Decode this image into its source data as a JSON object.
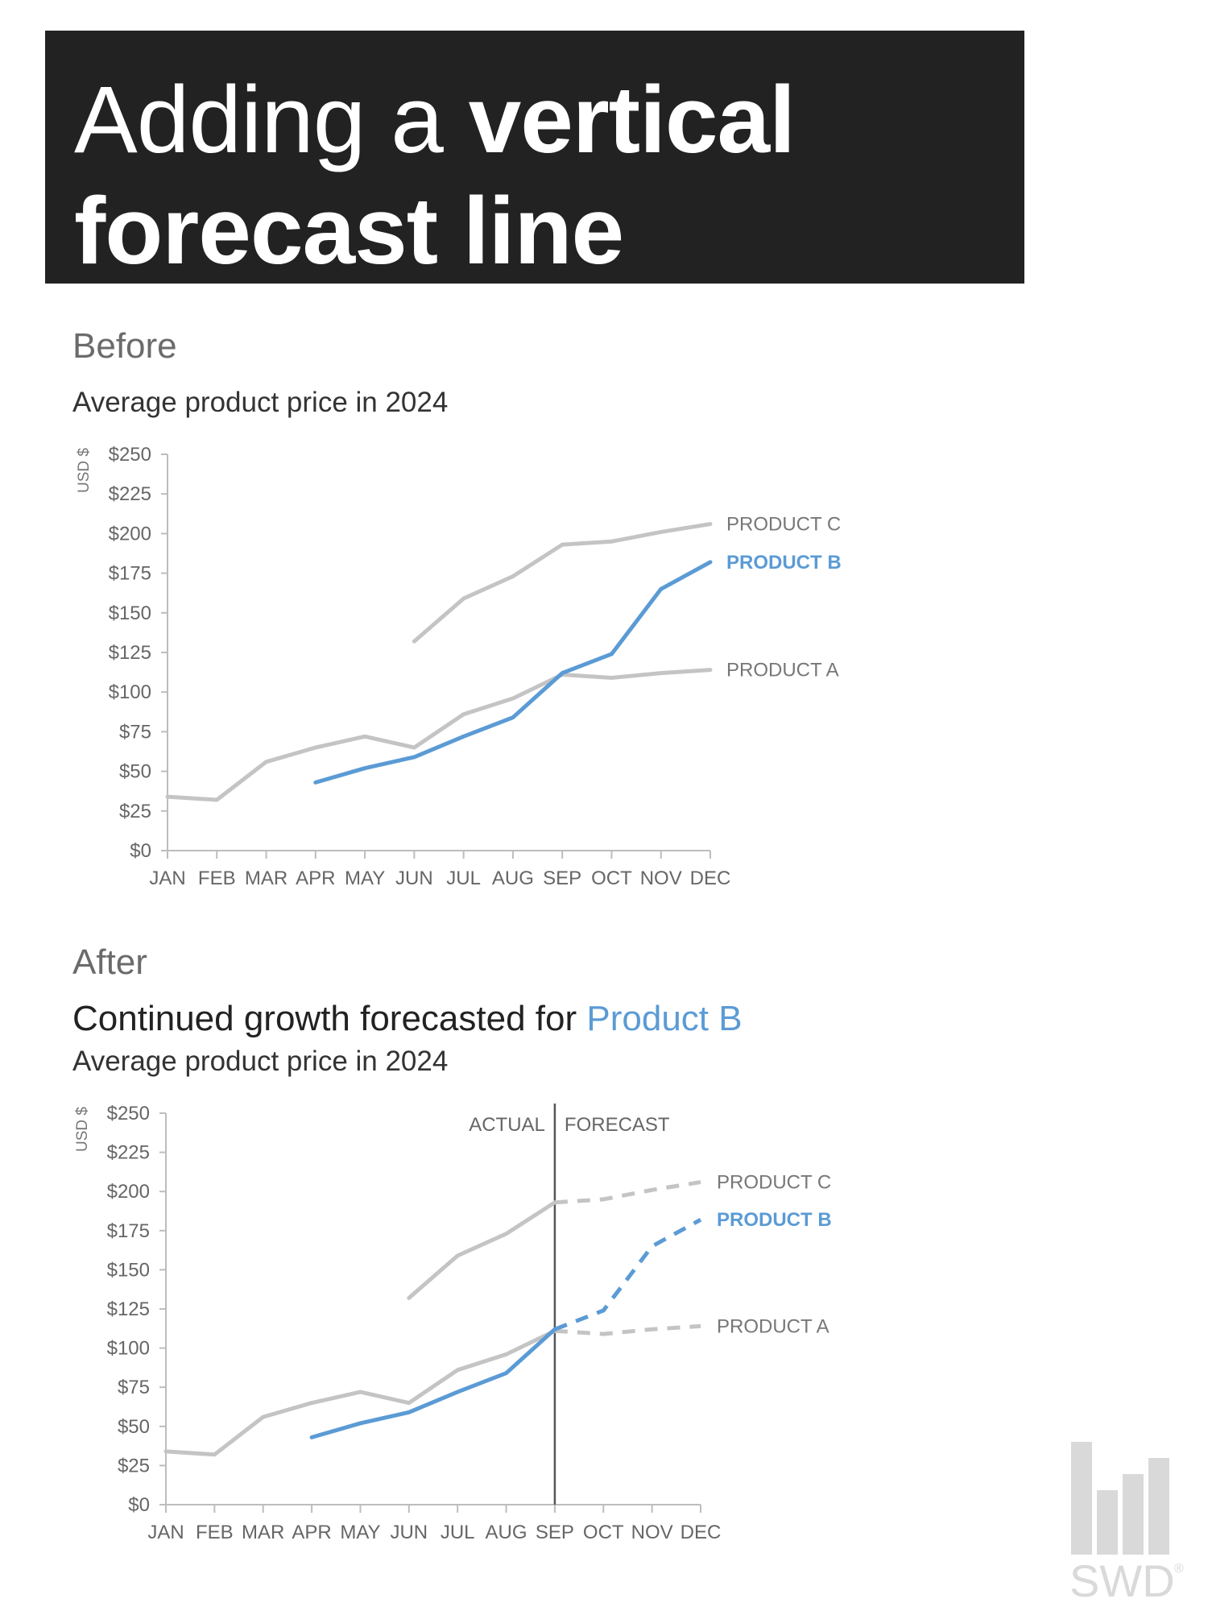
{
  "header": {
    "title_part1": "Adding a ",
    "title_part2": "vertical",
    "title_part3": "forecast line"
  },
  "before": {
    "label": "Before",
    "subtitle": "Average product price in 2024"
  },
  "after": {
    "label": "After",
    "title_prefix": "Continued growth forecasted for ",
    "title_highlight": "Product B",
    "subtitle": "Average product price in 2024",
    "actual_label": "ACTUAL",
    "forecast_label": "FORECAST"
  },
  "colors": {
    "gray": "#c4c4c4",
    "blue": "#5b9bd5",
    "axis": "#bdbdbd",
    "divider": "#555555"
  },
  "logo_text": "SWD",
  "chart_data": [
    {
      "type": "line",
      "title": "Average product price in 2024",
      "ylabel": "USD $",
      "categories": [
        "JAN",
        "FEB",
        "MAR",
        "APR",
        "MAY",
        "JUN",
        "JUL",
        "AUG",
        "SEP",
        "OCT",
        "NOV",
        "DEC"
      ],
      "ylim": [
        0,
        250
      ],
      "yticks": [
        "$0",
        "$25",
        "$50",
        "$75",
        "$100",
        "$125",
        "$150",
        "$175",
        "$200",
        "$225",
        "$250"
      ],
      "grid": false,
      "series": [
        {
          "name": "PRODUCT C",
          "color": "gray",
          "values": [
            null,
            null,
            null,
            null,
            null,
            132,
            159,
            173,
            193,
            195,
            201,
            206
          ]
        },
        {
          "name": "PRODUCT B",
          "color": "blue",
          "values": [
            null,
            null,
            null,
            43,
            52,
            59,
            72,
            84,
            112,
            124,
            165,
            182
          ]
        },
        {
          "name": "PRODUCT A",
          "color": "gray",
          "values": [
            34,
            32,
            56,
            65,
            72,
            65,
            86,
            96,
            111,
            109,
            112,
            114
          ]
        }
      ]
    },
    {
      "type": "line",
      "title": "Continued growth forecasted for Product B",
      "subtitle": "Average product price in 2024",
      "ylabel": "USD $",
      "categories": [
        "JAN",
        "FEB",
        "MAR",
        "APR",
        "MAY",
        "JUN",
        "JUL",
        "AUG",
        "SEP",
        "OCT",
        "NOV",
        "DEC"
      ],
      "ylim": [
        0,
        250
      ],
      "yticks": [
        "$0",
        "$25",
        "$50",
        "$75",
        "$100",
        "$125",
        "$150",
        "$175",
        "$200",
        "$225",
        "$250"
      ],
      "grid": false,
      "divider_after_category": "SEP",
      "actual_label": "ACTUAL",
      "forecast_label": "FORECAST",
      "series": [
        {
          "name": "PRODUCT C",
          "color": "gray",
          "values": [
            null,
            null,
            null,
            null,
            null,
            132,
            159,
            173,
            193,
            195,
            201,
            206
          ]
        },
        {
          "name": "PRODUCT B",
          "color": "blue",
          "values": [
            null,
            null,
            null,
            43,
            52,
            59,
            72,
            84,
            112,
            124,
            165,
            182
          ]
        },
        {
          "name": "PRODUCT A",
          "color": "gray",
          "values": [
            34,
            32,
            56,
            65,
            72,
            65,
            86,
            96,
            111,
            109,
            112,
            114
          ]
        }
      ]
    }
  ]
}
